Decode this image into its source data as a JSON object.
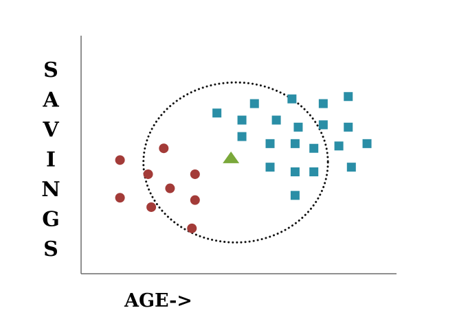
{
  "chart_data": {
    "type": "scatter",
    "title": "",
    "xlabel": "AGE->",
    "ylabel": "SAVINGS",
    "xlim": [
      0,
      100
    ],
    "ylim": [
      0,
      100
    ],
    "grid": false,
    "legend": "none",
    "series": [
      {
        "marker": "circle",
        "color": "#a33b38",
        "points": [
          {
            "x": 12,
            "y": 48
          },
          {
            "x": 26,
            "y": 53
          },
          {
            "x": 21,
            "y": 42
          },
          {
            "x": 36,
            "y": 42
          },
          {
            "x": 28,
            "y": 36
          },
          {
            "x": 12,
            "y": 32
          },
          {
            "x": 22,
            "y": 28
          },
          {
            "x": 36,
            "y": 31
          },
          {
            "x": 35,
            "y": 19
          }
        ]
      },
      {
        "marker": "square",
        "color": "#2a8ea6",
        "points": [
          {
            "x": 43,
            "y": 68
          },
          {
            "x": 55,
            "y": 72
          },
          {
            "x": 67,
            "y": 74
          },
          {
            "x": 77,
            "y": 72
          },
          {
            "x": 85,
            "y": 75
          },
          {
            "x": 51,
            "y": 65
          },
          {
            "x": 62,
            "y": 65
          },
          {
            "x": 69,
            "y": 62
          },
          {
            "x": 77,
            "y": 63
          },
          {
            "x": 85,
            "y": 62
          },
          {
            "x": 51,
            "y": 58
          },
          {
            "x": 60,
            "y": 55
          },
          {
            "x": 68,
            "y": 55
          },
          {
            "x": 74,
            "y": 53
          },
          {
            "x": 82,
            "y": 54
          },
          {
            "x": 91,
            "y": 55
          },
          {
            "x": 60,
            "y": 45
          },
          {
            "x": 68,
            "y": 43
          },
          {
            "x": 74,
            "y": 43
          },
          {
            "x": 86,
            "y": 45
          },
          {
            "x": 68,
            "y": 33
          }
        ]
      },
      {
        "marker": "triangle",
        "color": "#7aa83a",
        "points": [
          {
            "x": 47.5,
            "y": 49
          }
        ]
      }
    ],
    "annotations": [
      {
        "type": "dotted-circle",
        "center": {
          "x": 49,
          "y": 47
        },
        "rx": 29.5,
        "ry": 34
      }
    ]
  }
}
